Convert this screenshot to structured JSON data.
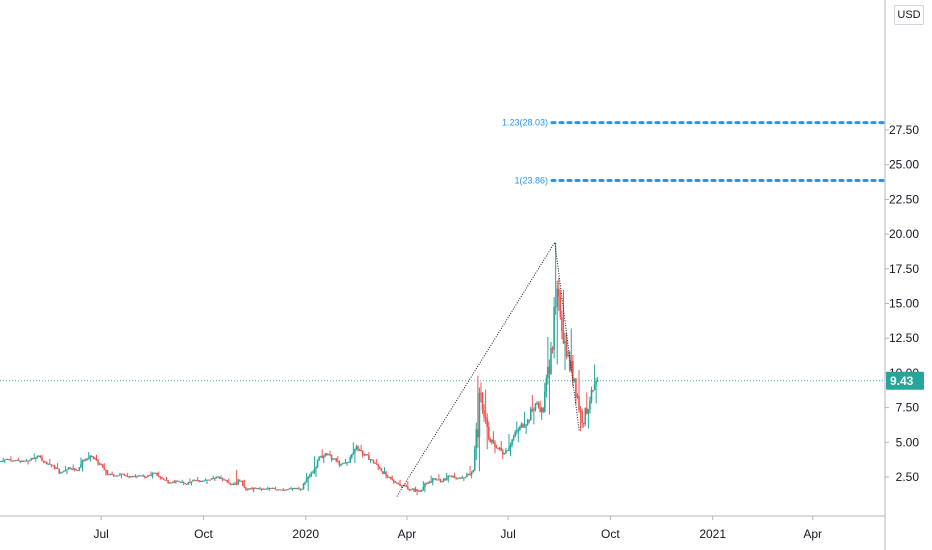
{
  "currency": "USD",
  "chart_data": {
    "type": "candlestick",
    "x_ticks": [
      "Jul",
      "Oct",
      "2020",
      "Apr",
      "Jul",
      "Oct",
      "2021",
      "Apr"
    ],
    "y_ticks": [
      "2.50",
      "5.00",
      "7.50",
      "10.00",
      "12.50",
      "15.00",
      "17.50",
      "20.00",
      "22.50",
      "25.00",
      "27.50"
    ],
    "ylim": [
      0,
      29.5
    ],
    "xlim": [
      "2019-04-01",
      "2021-06-05"
    ],
    "last_price": "9.43",
    "last_price_value": 9.43,
    "colors": {
      "up": "#26a69a",
      "down": "#ef5350",
      "fib": "#2196f3",
      "price_line": "#26a69a",
      "drawing": "#131722"
    },
    "fib_levels": [
      {
        "label": "1.23(28.03)",
        "value": 28.03
      },
      {
        "label": "1(23.86)",
        "value": 23.86
      }
    ],
    "trend_drawing": [
      {
        "date": "2020-03-23",
        "value": 1.1
      },
      {
        "date": "2020-08-12",
        "value": 19.4
      },
      {
        "date": "2020-09-03",
        "value": 5.8
      }
    ],
    "weekly_ohlc": [
      [
        "2019-04-01",
        3.6,
        3.9,
        3.5,
        3.8
      ],
      [
        "2019-04-08",
        3.8,
        4.0,
        3.6,
        3.7
      ],
      [
        "2019-04-15",
        3.7,
        3.9,
        3.5,
        3.6
      ],
      [
        "2019-04-22",
        3.6,
        3.8,
        3.4,
        3.7
      ],
      [
        "2019-04-29",
        3.7,
        4.2,
        3.6,
        4.0
      ],
      [
        "2019-05-06",
        4.0,
        4.1,
        3.5,
        3.6
      ],
      [
        "2019-05-13",
        3.6,
        3.8,
        3.2,
        3.3
      ],
      [
        "2019-05-20",
        3.3,
        3.5,
        2.7,
        2.8
      ],
      [
        "2019-05-27",
        2.8,
        3.3,
        2.7,
        3.2
      ],
      [
        "2019-06-03",
        3.2,
        3.4,
        2.9,
        3.0
      ],
      [
        "2019-06-10",
        3.0,
        3.9,
        2.9,
        3.7
      ],
      [
        "2019-06-17",
        3.7,
        4.3,
        3.6,
        4.0
      ],
      [
        "2019-06-24",
        4.0,
        4.1,
        3.3,
        3.4
      ],
      [
        "2019-07-01",
        3.4,
        3.5,
        2.6,
        2.7
      ],
      [
        "2019-07-08",
        2.7,
        2.9,
        2.5,
        2.6
      ],
      [
        "2019-07-15",
        2.6,
        2.8,
        2.4,
        2.7
      ],
      [
        "2019-07-22",
        2.7,
        2.8,
        2.4,
        2.5
      ],
      [
        "2019-07-29",
        2.5,
        2.7,
        2.4,
        2.6
      ],
      [
        "2019-08-05",
        2.6,
        2.7,
        2.4,
        2.5
      ],
      [
        "2019-08-12",
        2.5,
        2.9,
        2.4,
        2.8
      ],
      [
        "2019-08-19",
        2.8,
        2.9,
        2.3,
        2.4
      ],
      [
        "2019-08-26",
        2.4,
        2.5,
        2.0,
        2.1
      ],
      [
        "2019-09-02",
        2.1,
        2.3,
        2.0,
        2.2
      ],
      [
        "2019-09-09",
        2.2,
        2.3,
        1.9,
        2.0
      ],
      [
        "2019-09-16",
        2.0,
        2.4,
        1.9,
        2.3
      ],
      [
        "2019-09-23",
        2.3,
        2.5,
        2.1,
        2.2
      ],
      [
        "2019-09-30",
        2.2,
        2.4,
        2.0,
        2.3
      ],
      [
        "2019-10-07",
        2.3,
        2.6,
        2.2,
        2.5
      ],
      [
        "2019-10-14",
        2.5,
        2.6,
        2.2,
        2.3
      ],
      [
        "2019-10-21",
        2.3,
        2.4,
        1.9,
        2.0
      ],
      [
        "2019-10-28",
        2.0,
        3.0,
        1.9,
        2.2
      ],
      [
        "2019-11-04",
        2.2,
        2.3,
        1.5,
        1.6
      ],
      [
        "2019-11-11",
        1.6,
        1.8,
        1.4,
        1.7
      ],
      [
        "2019-11-18",
        1.7,
        1.8,
        1.5,
        1.6
      ],
      [
        "2019-11-25",
        1.6,
        1.8,
        1.5,
        1.7
      ],
      [
        "2019-12-02",
        1.7,
        1.8,
        1.5,
        1.6
      ],
      [
        "2019-12-09",
        1.6,
        1.7,
        1.5,
        1.6
      ],
      [
        "2019-12-16",
        1.6,
        1.8,
        1.5,
        1.7
      ],
      [
        "2019-12-23",
        1.7,
        1.8,
        1.5,
        1.6
      ],
      [
        "2019-12-30",
        1.6,
        2.8,
        1.5,
        2.6
      ],
      [
        "2020-01-06",
        2.6,
        4.0,
        2.5,
        3.7
      ],
      [
        "2020-01-13",
        3.7,
        4.5,
        3.5,
        4.2
      ],
      [
        "2020-01-20",
        4.2,
        4.4,
        3.6,
        3.8
      ],
      [
        "2020-01-27",
        3.8,
        4.0,
        3.2,
        3.4
      ],
      [
        "2020-02-03",
        3.4,
        3.8,
        3.3,
        3.6
      ],
      [
        "2020-02-10",
        3.6,
        5.0,
        3.5,
        4.7
      ],
      [
        "2020-02-17",
        4.7,
        4.8,
        3.9,
        4.1
      ],
      [
        "2020-02-24",
        4.1,
        4.3,
        3.5,
        3.7
      ],
      [
        "2020-03-02",
        3.7,
        3.8,
        3.0,
        3.1
      ],
      [
        "2020-03-09",
        3.1,
        3.2,
        2.4,
        2.5
      ],
      [
        "2020-03-16",
        2.5,
        2.6,
        2.0,
        2.1
      ],
      [
        "2020-03-23",
        2.1,
        2.3,
        1.7,
        1.9
      ],
      [
        "2020-03-30",
        1.9,
        2.2,
        1.5,
        1.6
      ],
      [
        "2020-04-06",
        1.6,
        1.8,
        1.2,
        1.5
      ],
      [
        "2020-04-13",
        1.5,
        2.2,
        1.4,
        2.0
      ],
      [
        "2020-04-20",
        2.0,
        2.6,
        1.9,
        2.4
      ],
      [
        "2020-04-27",
        2.4,
        2.7,
        2.1,
        2.2
      ],
      [
        "2020-05-04",
        2.2,
        2.8,
        2.1,
        2.6
      ],
      [
        "2020-05-11",
        2.6,
        2.8,
        2.3,
        2.4
      ],
      [
        "2020-05-18",
        2.4,
        2.6,
        2.2,
        2.5
      ],
      [
        "2020-05-25",
        2.5,
        3.3,
        2.4,
        3.0
      ],
      [
        "2020-06-01",
        3.0,
        9.8,
        2.9,
        8.5
      ],
      [
        "2020-06-08",
        8.5,
        8.8,
        4.5,
        5.2
      ],
      [
        "2020-06-15",
        5.2,
        5.8,
        4.2,
        4.6
      ],
      [
        "2020-06-22",
        4.6,
        5.1,
        3.8,
        4.2
      ],
      [
        "2020-06-29",
        4.2,
        5.6,
        4.0,
        5.2
      ],
      [
        "2020-07-06",
        5.2,
        6.5,
        5.0,
        6.1
      ],
      [
        "2020-07-13",
        6.1,
        7.2,
        5.6,
        6.6
      ],
      [
        "2020-07-20",
        6.6,
        8.4,
        6.3,
        7.8
      ],
      [
        "2020-07-27",
        7.8,
        8.0,
        6.6,
        7.2
      ],
      [
        "2020-08-03",
        7.2,
        12.6,
        7.0,
        11.8
      ],
      [
        "2020-08-10",
        11.8,
        19.4,
        10.6,
        15.5
      ],
      [
        "2020-08-17",
        15.5,
        16.0,
        10.2,
        11.2
      ],
      [
        "2020-08-24",
        11.2,
        13.2,
        9.0,
        9.6
      ],
      [
        "2020-08-31",
        9.6,
        10.2,
        5.8,
        6.4
      ],
      [
        "2020-09-07",
        6.4,
        8.6,
        6.0,
        8.0
      ],
      [
        "2020-09-14",
        8.0,
        10.6,
        7.8,
        9.43
      ]
    ]
  }
}
